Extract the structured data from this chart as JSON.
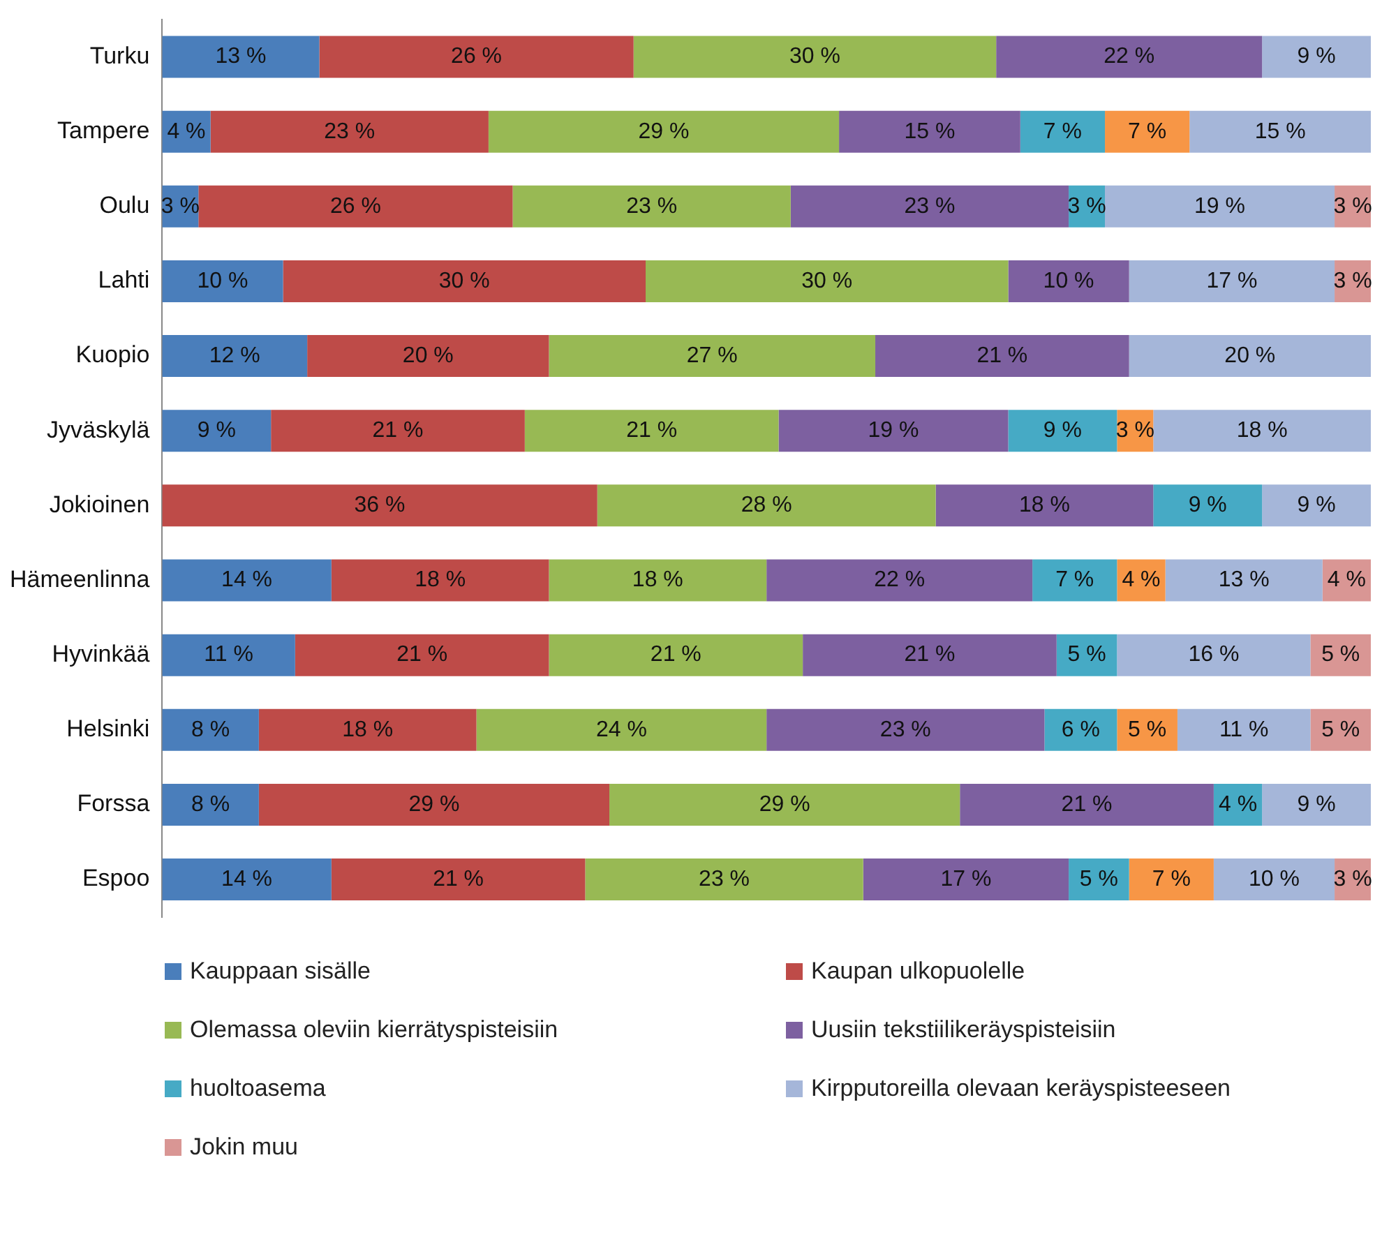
{
  "chart_data": {
    "type": "bar",
    "orientation": "horizontal",
    "stacked": true,
    "legend": "bottom",
    "grid": false,
    "tick_labels": "y",
    "categories": [
      "Turku",
      "Tampere",
      "Oulu",
      "Lahti",
      "Kuopio",
      "Jyväskylä",
      "Jokioinen",
      "Hämeenlinna",
      "Hyvinkää",
      "Helsinki",
      "Forssa",
      "Espoo"
    ],
    "series": [
      {
        "name": "Kauppaan sisälle",
        "color": "#4a7ebb",
        "values": [
          13,
          4,
          3,
          10,
          12,
          9,
          null,
          14,
          11,
          8,
          8,
          14
        ],
        "value_labels": [
          "13 %",
          "4 %",
          "3 %",
          "10 %",
          "12 %",
          "9 %",
          null,
          "14 %",
          "11 %",
          "8 %",
          "8 %",
          "14 %"
        ]
      },
      {
        "name": "Kaupan ulkopuolelle",
        "color": "#be4b48",
        "values": [
          26,
          23,
          26,
          30,
          20,
          21,
          36,
          18,
          21,
          18,
          29,
          21
        ],
        "value_labels": [
          "26 %",
          "23 %",
          "26 %",
          "30 %",
          "20 %",
          "21 %",
          "36 %",
          "18 %",
          "21 %",
          "18 %",
          "29 %",
          "21 %"
        ]
      },
      {
        "name": "Olemassa oleviin kierrätyspisteisiin",
        "color": "#98b954",
        "values": [
          30,
          29,
          23,
          30,
          27,
          21,
          28,
          18,
          21,
          24,
          29,
          23
        ],
        "value_labels": [
          "30 %",
          "29 %",
          "23 %",
          "30 %",
          "27 %",
          "21 %",
          "28 %",
          "18 %",
          "21 %",
          "24 %",
          "29 %",
          "23 %"
        ]
      },
      {
        "name": "Uusiin tekstiilikeräyspisteisiin",
        "color": "#7d60a0",
        "values": [
          22,
          15,
          23,
          10,
          21,
          19,
          18,
          22,
          21,
          23,
          21,
          17
        ],
        "value_labels": [
          "22 %",
          "15 %",
          "23 %",
          "10 %",
          "21 %",
          "19 %",
          "18 %",
          "22 %",
          "21 %",
          "23 %",
          "21 %",
          "17 %"
        ]
      },
      {
        "name": "huoltoasema",
        "color": "#46aac5",
        "values": [
          null,
          7,
          3,
          null,
          null,
          9,
          9,
          7,
          5,
          6,
          4,
          5
        ],
        "value_labels": [
          null,
          "7 %",
          "3 %",
          null,
          null,
          "9 %",
          "9 %",
          "7 %",
          "5 %",
          "6 %",
          "4 %",
          "5 %"
        ]
      },
      {
        "color": "#f79646",
        "values": [
          null,
          7,
          null,
          null,
          null,
          3,
          null,
          4,
          null,
          5,
          null,
          7
        ],
        "value_labels": [
          null,
          "7 %",
          null,
          null,
          null,
          "3 %",
          null,
          "4 %",
          null,
          "5 %",
          null,
          "7 %"
        ]
      },
      {
        "name": "Kirpputoreilla olevaan keräyspisteeseen",
        "color": "#a5b6d9",
        "values": [
          9,
          15,
          19,
          17,
          20,
          18,
          9,
          13,
          16,
          11,
          9,
          10
        ],
        "value_labels": [
          "9 %",
          "15 %",
          "19 %",
          "17 %",
          "20 %",
          "18 %",
          "9 %",
          "13 %",
          "16 %",
          "11 %",
          "9 %",
          "10 %"
        ]
      },
      {
        "name": "Jokin muu",
        "color": "#d99694",
        "values": [
          null,
          null,
          3,
          3,
          null,
          null,
          null,
          4,
          5,
          5,
          null,
          3
        ],
        "value_labels": [
          null,
          null,
          "3 %",
          "3 %",
          null,
          null,
          null,
          "4 %",
          "5 %",
          "5 %",
          null,
          "3 %"
        ]
      }
    ]
  }
}
